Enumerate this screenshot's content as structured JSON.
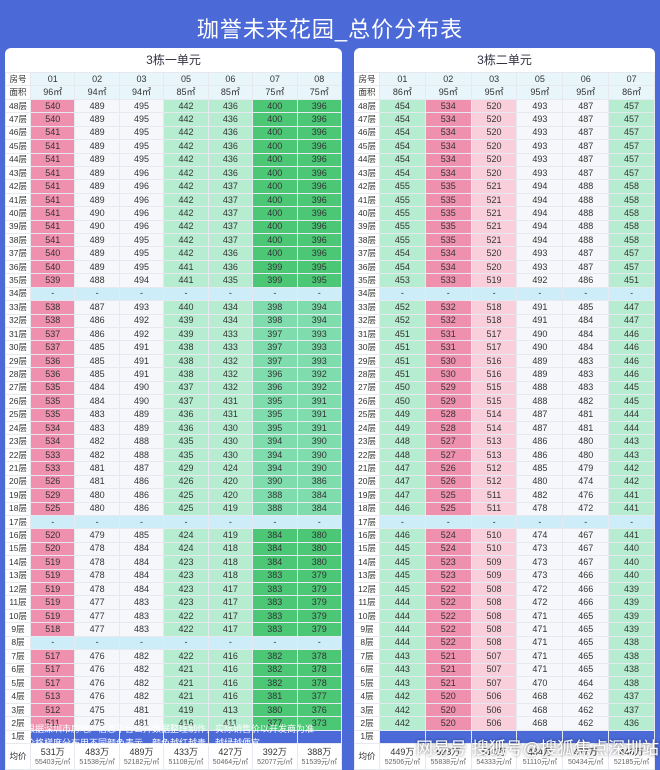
{
  "title": "珈誉未来花园_总价分布表",
  "floor_header_label": "房号",
  "area_header_label": "面积",
  "avg_label": "均价",
  "gap_cell": "-",
  "floors": [
    "48层",
    "47层",
    "46层",
    "45层",
    "44层",
    "43层",
    "42层",
    "41层",
    "40层",
    "39层",
    "38层",
    "37层",
    "36层",
    "35层",
    "34层",
    "33层",
    "32层",
    "31层",
    "30层",
    "29层",
    "28层",
    "27层",
    "26层",
    "25层",
    "24层",
    "23层",
    "22层",
    "21层",
    "20层",
    "19层",
    "18层",
    "17层",
    "16层",
    "15层",
    "14层",
    "13层",
    "12层",
    "11层",
    "10层",
    "9层",
    "8层",
    "7层",
    "6层",
    "5层",
    "4层",
    "3层",
    "2层",
    "1层"
  ],
  "buildings": [
    {
      "name": "3栋一单元",
      "units": [
        "01",
        "02",
        "03",
        "05",
        "06",
        "07",
        "08"
      ],
      "areas": [
        "96㎡",
        "94㎡",
        "94㎡",
        "85㎡",
        "85㎡",
        "75㎡",
        "75㎡"
      ],
      "tones": [
        "pk",
        "wh",
        "wh",
        "lg",
        "lg",
        "mg",
        "mg"
      ],
      "gap_floors": [
        "34层",
        "17层",
        "8层"
      ],
      "empty_floors": [
        "1层"
      ],
      "prices": {
        "48层": [
          "540",
          "489",
          "495",
          "442",
          "436",
          "400",
          "396"
        ],
        "47层": [
          "540",
          "489",
          "495",
          "442",
          "436",
          "400",
          "396"
        ],
        "46层": [
          "541",
          "489",
          "495",
          "442",
          "436",
          "400",
          "396"
        ],
        "45层": [
          "541",
          "489",
          "495",
          "442",
          "436",
          "400",
          "396"
        ],
        "44层": [
          "541",
          "489",
          "495",
          "442",
          "436",
          "400",
          "396"
        ],
        "43层": [
          "541",
          "489",
          "496",
          "442",
          "436",
          "400",
          "396"
        ],
        "42层": [
          "541",
          "489",
          "496",
          "442",
          "437",
          "400",
          "396"
        ],
        "41层": [
          "541",
          "489",
          "496",
          "442",
          "437",
          "400",
          "396"
        ],
        "40层": [
          "541",
          "490",
          "496",
          "442",
          "437",
          "400",
          "396"
        ],
        "39层": [
          "541",
          "490",
          "496",
          "442",
          "437",
          "400",
          "396"
        ],
        "38层": [
          "541",
          "489",
          "495",
          "442",
          "437",
          "400",
          "396"
        ],
        "37层": [
          "540",
          "489",
          "495",
          "442",
          "436",
          "400",
          "396"
        ],
        "36层": [
          "540",
          "489",
          "495",
          "441",
          "436",
          "399",
          "395"
        ],
        "35层": [
          "539",
          "488",
          "494",
          "441",
          "435",
          "399",
          "395"
        ],
        "33层": [
          "538",
          "487",
          "493",
          "440",
          "434",
          "398",
          "394"
        ],
        "32层": [
          "538",
          "486",
          "492",
          "439",
          "434",
          "398",
          "394"
        ],
        "31层": [
          "537",
          "486",
          "492",
          "439",
          "433",
          "397",
          "393"
        ],
        "30层": [
          "537",
          "485",
          "491",
          "438",
          "433",
          "397",
          "393"
        ],
        "29层": [
          "536",
          "485",
          "491",
          "438",
          "432",
          "397",
          "393"
        ],
        "28层": [
          "536",
          "485",
          "491",
          "438",
          "432",
          "396",
          "392"
        ],
        "27层": [
          "535",
          "484",
          "490",
          "437",
          "432",
          "396",
          "392"
        ],
        "26层": [
          "535",
          "484",
          "490",
          "437",
          "431",
          "395",
          "391"
        ],
        "25层": [
          "535",
          "483",
          "489",
          "436",
          "431",
          "395",
          "391"
        ],
        "24层": [
          "534",
          "483",
          "489",
          "436",
          "430",
          "395",
          "391"
        ],
        "23层": [
          "534",
          "482",
          "488",
          "435",
          "430",
          "394",
          "390"
        ],
        "22层": [
          "533",
          "482",
          "488",
          "435",
          "430",
          "394",
          "390"
        ],
        "21层": [
          "533",
          "481",
          "487",
          "429",
          "424",
          "394",
          "390"
        ],
        "20层": [
          "526",
          "481",
          "486",
          "426",
          "420",
          "390",
          "386"
        ],
        "19层": [
          "529",
          "480",
          "486",
          "425",
          "420",
          "388",
          "384"
        ],
        "18层": [
          "525",
          "480",
          "486",
          "425",
          "419",
          "388",
          "384"
        ],
        "16层": [
          "520",
          "479",
          "485",
          "424",
          "419",
          "384",
          "380"
        ],
        "15层": [
          "520",
          "478",
          "484",
          "424",
          "418",
          "384",
          "380"
        ],
        "14层": [
          "519",
          "478",
          "484",
          "423",
          "418",
          "384",
          "380"
        ],
        "13层": [
          "519",
          "478",
          "484",
          "423",
          "418",
          "383",
          "379"
        ],
        "12层": [
          "519",
          "478",
          "484",
          "423",
          "417",
          "383",
          "379"
        ],
        "11层": [
          "519",
          "477",
          "483",
          "423",
          "417",
          "383",
          "379"
        ],
        "10层": [
          "519",
          "477",
          "483",
          "422",
          "417",
          "383",
          "379"
        ],
        "9层": [
          "518",
          "477",
          "483",
          "422",
          "417",
          "383",
          "379"
        ],
        "7层": [
          "517",
          "476",
          "482",
          "422",
          "416",
          "382",
          "378"
        ],
        "6层": [
          "517",
          "476",
          "482",
          "421",
          "416",
          "382",
          "378"
        ],
        "5层": [
          "517",
          "476",
          "482",
          "421",
          "416",
          "382",
          "378"
        ],
        "4层": [
          "513",
          "476",
          "482",
          "421",
          "416",
          "381",
          "377"
        ],
        "3层": [
          "512",
          "475",
          "481",
          "419",
          "413",
          "380",
          "376"
        ],
        "2层": [
          "511",
          "475",
          "481",
          "416",
          "411",
          "377",
          "373"
        ]
      },
      "averages": [
        {
          "total": "531万",
          "unit": "55403元/㎡"
        },
        {
          "total": "483万",
          "unit": "51538元/㎡"
        },
        {
          "total": "489万",
          "unit": "52182元/㎡"
        },
        {
          "total": "433万",
          "unit": "51108元/㎡"
        },
        {
          "total": "427万",
          "unit": "50464元/㎡"
        },
        {
          "total": "392万",
          "unit": "52077元/㎡"
        },
        {
          "total": "388万",
          "unit": "51539元/㎡"
        }
      ]
    },
    {
      "name": "3栋二单元",
      "units": [
        "01",
        "02",
        "03",
        "05",
        "06",
        "07"
      ],
      "areas": [
        "86㎡",
        "95㎡",
        "95㎡",
        "95㎡",
        "95㎡",
        "86㎡"
      ],
      "tones": [
        "lg",
        "pk",
        "lp",
        "wh",
        "wh",
        "lg"
      ],
      "gap_floors": [
        "34层",
        "17层"
      ],
      "empty_floors": [
        "1层"
      ],
      "prices": {
        "48层": [
          "454",
          "534",
          "520",
          "493",
          "487",
          "457"
        ],
        "47层": [
          "454",
          "534",
          "520",
          "493",
          "487",
          "457"
        ],
        "46层": [
          "454",
          "534",
          "520",
          "493",
          "487",
          "457"
        ],
        "45层": [
          "454",
          "534",
          "520",
          "493",
          "487",
          "457"
        ],
        "44层": [
          "454",
          "534",
          "520",
          "493",
          "487",
          "457"
        ],
        "43层": [
          "454",
          "534",
          "520",
          "493",
          "487",
          "457"
        ],
        "42层": [
          "455",
          "535",
          "521",
          "494",
          "488",
          "458"
        ],
        "41层": [
          "455",
          "535",
          "521",
          "494",
          "488",
          "458"
        ],
        "40层": [
          "455",
          "535",
          "521",
          "494",
          "488",
          "458"
        ],
        "39层": [
          "455",
          "535",
          "521",
          "494",
          "488",
          "458"
        ],
        "38层": [
          "455",
          "535",
          "521",
          "494",
          "488",
          "458"
        ],
        "37层": [
          "454",
          "534",
          "520",
          "493",
          "487",
          "457"
        ],
        "36层": [
          "454",
          "534",
          "520",
          "493",
          "487",
          "457"
        ],
        "35层": [
          "453",
          "533",
          "519",
          "492",
          "486",
          "451"
        ],
        "33层": [
          "452",
          "532",
          "518",
          "491",
          "485",
          "447"
        ],
        "32层": [
          "452",
          "532",
          "518",
          "491",
          "484",
          "447"
        ],
        "31层": [
          "451",
          "531",
          "517",
          "490",
          "484",
          "446"
        ],
        "30层": [
          "451",
          "531",
          "517",
          "490",
          "484",
          "446"
        ],
        "29层": [
          "451",
          "530",
          "516",
          "489",
          "483",
          "446"
        ],
        "28层": [
          "451",
          "530",
          "516",
          "489",
          "483",
          "446"
        ],
        "27层": [
          "450",
          "529",
          "515",
          "488",
          "483",
          "445"
        ],
        "26层": [
          "450",
          "529",
          "515",
          "488",
          "482",
          "445"
        ],
        "25层": [
          "449",
          "528",
          "514",
          "487",
          "481",
          "444"
        ],
        "24层": [
          "449",
          "528",
          "514",
          "487",
          "481",
          "444"
        ],
        "23层": [
          "448",
          "527",
          "513",
          "486",
          "480",
          "443"
        ],
        "22层": [
          "448",
          "527",
          "513",
          "486",
          "480",
          "443"
        ],
        "21层": [
          "447",
          "526",
          "512",
          "485",
          "479",
          "442"
        ],
        "20层": [
          "447",
          "526",
          "512",
          "480",
          "474",
          "442"
        ],
        "19层": [
          "447",
          "525",
          "511",
          "482",
          "476",
          "441"
        ],
        "18层": [
          "446",
          "525",
          "511",
          "478",
          "472",
          "441"
        ],
        "16层": [
          "446",
          "524",
          "510",
          "474",
          "467",
          "441"
        ],
        "15层": [
          "445",
          "524",
          "510",
          "473",
          "467",
          "440"
        ],
        "14层": [
          "445",
          "523",
          "509",
          "473",
          "467",
          "440"
        ],
        "13层": [
          "445",
          "523",
          "509",
          "473",
          "466",
          "440"
        ],
        "12层": [
          "445",
          "522",
          "508",
          "472",
          "466",
          "439"
        ],
        "11层": [
          "444",
          "522",
          "508",
          "472",
          "466",
          "439"
        ],
        "10层": [
          "444",
          "522",
          "508",
          "471",
          "465",
          "439"
        ],
        "9层": [
          "444",
          "522",
          "508",
          "471",
          "465",
          "439"
        ],
        "8层": [
          "444",
          "522",
          "508",
          "471",
          "465",
          "438"
        ],
        "7层": [
          "443",
          "521",
          "507",
          "471",
          "465",
          "438"
        ],
        "6层": [
          "443",
          "521",
          "507",
          "471",
          "465",
          "438"
        ],
        "5层": [
          "443",
          "521",
          "507",
          "470",
          "464",
          "438"
        ],
        "4层": [
          "442",
          "520",
          "506",
          "468",
          "462",
          "437"
        ],
        "3层": [
          "442",
          "520",
          "506",
          "468",
          "462",
          "437"
        ],
        "2层": [
          "442",
          "520",
          "506",
          "468",
          "462",
          "436"
        ]
      },
      "averages": [
        {
          "total": "449万",
          "unit": "52506元/㎡"
        },
        {
          "total": "528万",
          "unit": "55838元/㎡"
        },
        {
          "total": "514万",
          "unit": "54333元/㎡"
        },
        {
          "total": "484万",
          "unit": "51110元/㎡"
        },
        {
          "total": "477万",
          "unit": "50434元/㎡"
        },
        {
          "total": "446万",
          "unit": "52185元/㎡"
        }
      ]
    }
  ],
  "notes": [
    "* 根据深圳市房地产信息平台公开数据整理制作，实际销售价以开发商为准",
    "* 价格梯度分布用不同颜色表示，颜色越红越贵，越绿越便宜"
  ],
  "watermark": "网易号 搜狐号@搜狐焦点深圳站"
}
